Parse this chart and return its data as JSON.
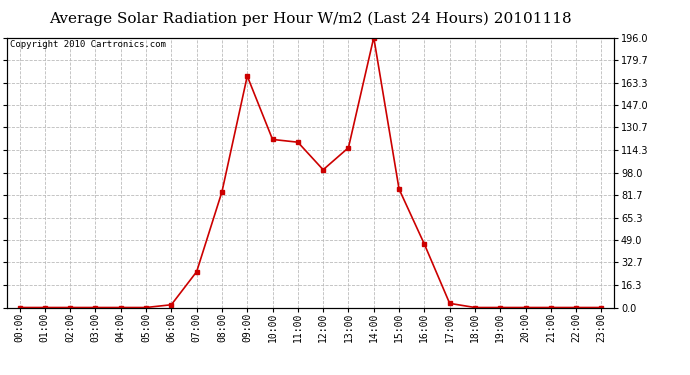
{
  "title": "Average Solar Radiation per Hour W/m2 (Last 24 Hours) 20101118",
  "copyright_text": "Copyright 2010 Cartronics.com",
  "hours": [
    "00:00",
    "01:00",
    "02:00",
    "03:00",
    "04:00",
    "05:00",
    "06:00",
    "07:00",
    "08:00",
    "09:00",
    "10:00",
    "11:00",
    "12:00",
    "13:00",
    "14:00",
    "15:00",
    "16:00",
    "17:00",
    "18:00",
    "19:00",
    "20:00",
    "21:00",
    "22:00",
    "23:00"
  ],
  "values": [
    0.0,
    0.0,
    0.0,
    0.0,
    0.0,
    0.0,
    2.0,
    26.0,
    84.0,
    168.0,
    122.0,
    120.0,
    100.0,
    116.0,
    196.0,
    86.0,
    46.0,
    3.0,
    0.0,
    0.0,
    0.0,
    0.0,
    0.0,
    0.0
  ],
  "line_color": "#cc0000",
  "marker": "s",
  "marker_size": 2.5,
  "line_width": 1.2,
  "background_color": "#ffffff",
  "plot_bg_color": "#ffffff",
  "grid_color": "#bbbbbb",
  "yticks": [
    0.0,
    16.3,
    32.7,
    49.0,
    65.3,
    81.7,
    98.0,
    114.3,
    130.7,
    147.0,
    163.3,
    179.7,
    196.0
  ],
  "ylim": [
    0,
    196.0
  ],
  "title_fontsize": 11,
  "copyright_fontsize": 6.5,
  "tick_fontsize": 7,
  "fig_width": 6.9,
  "fig_height": 3.75,
  "dpi": 100
}
